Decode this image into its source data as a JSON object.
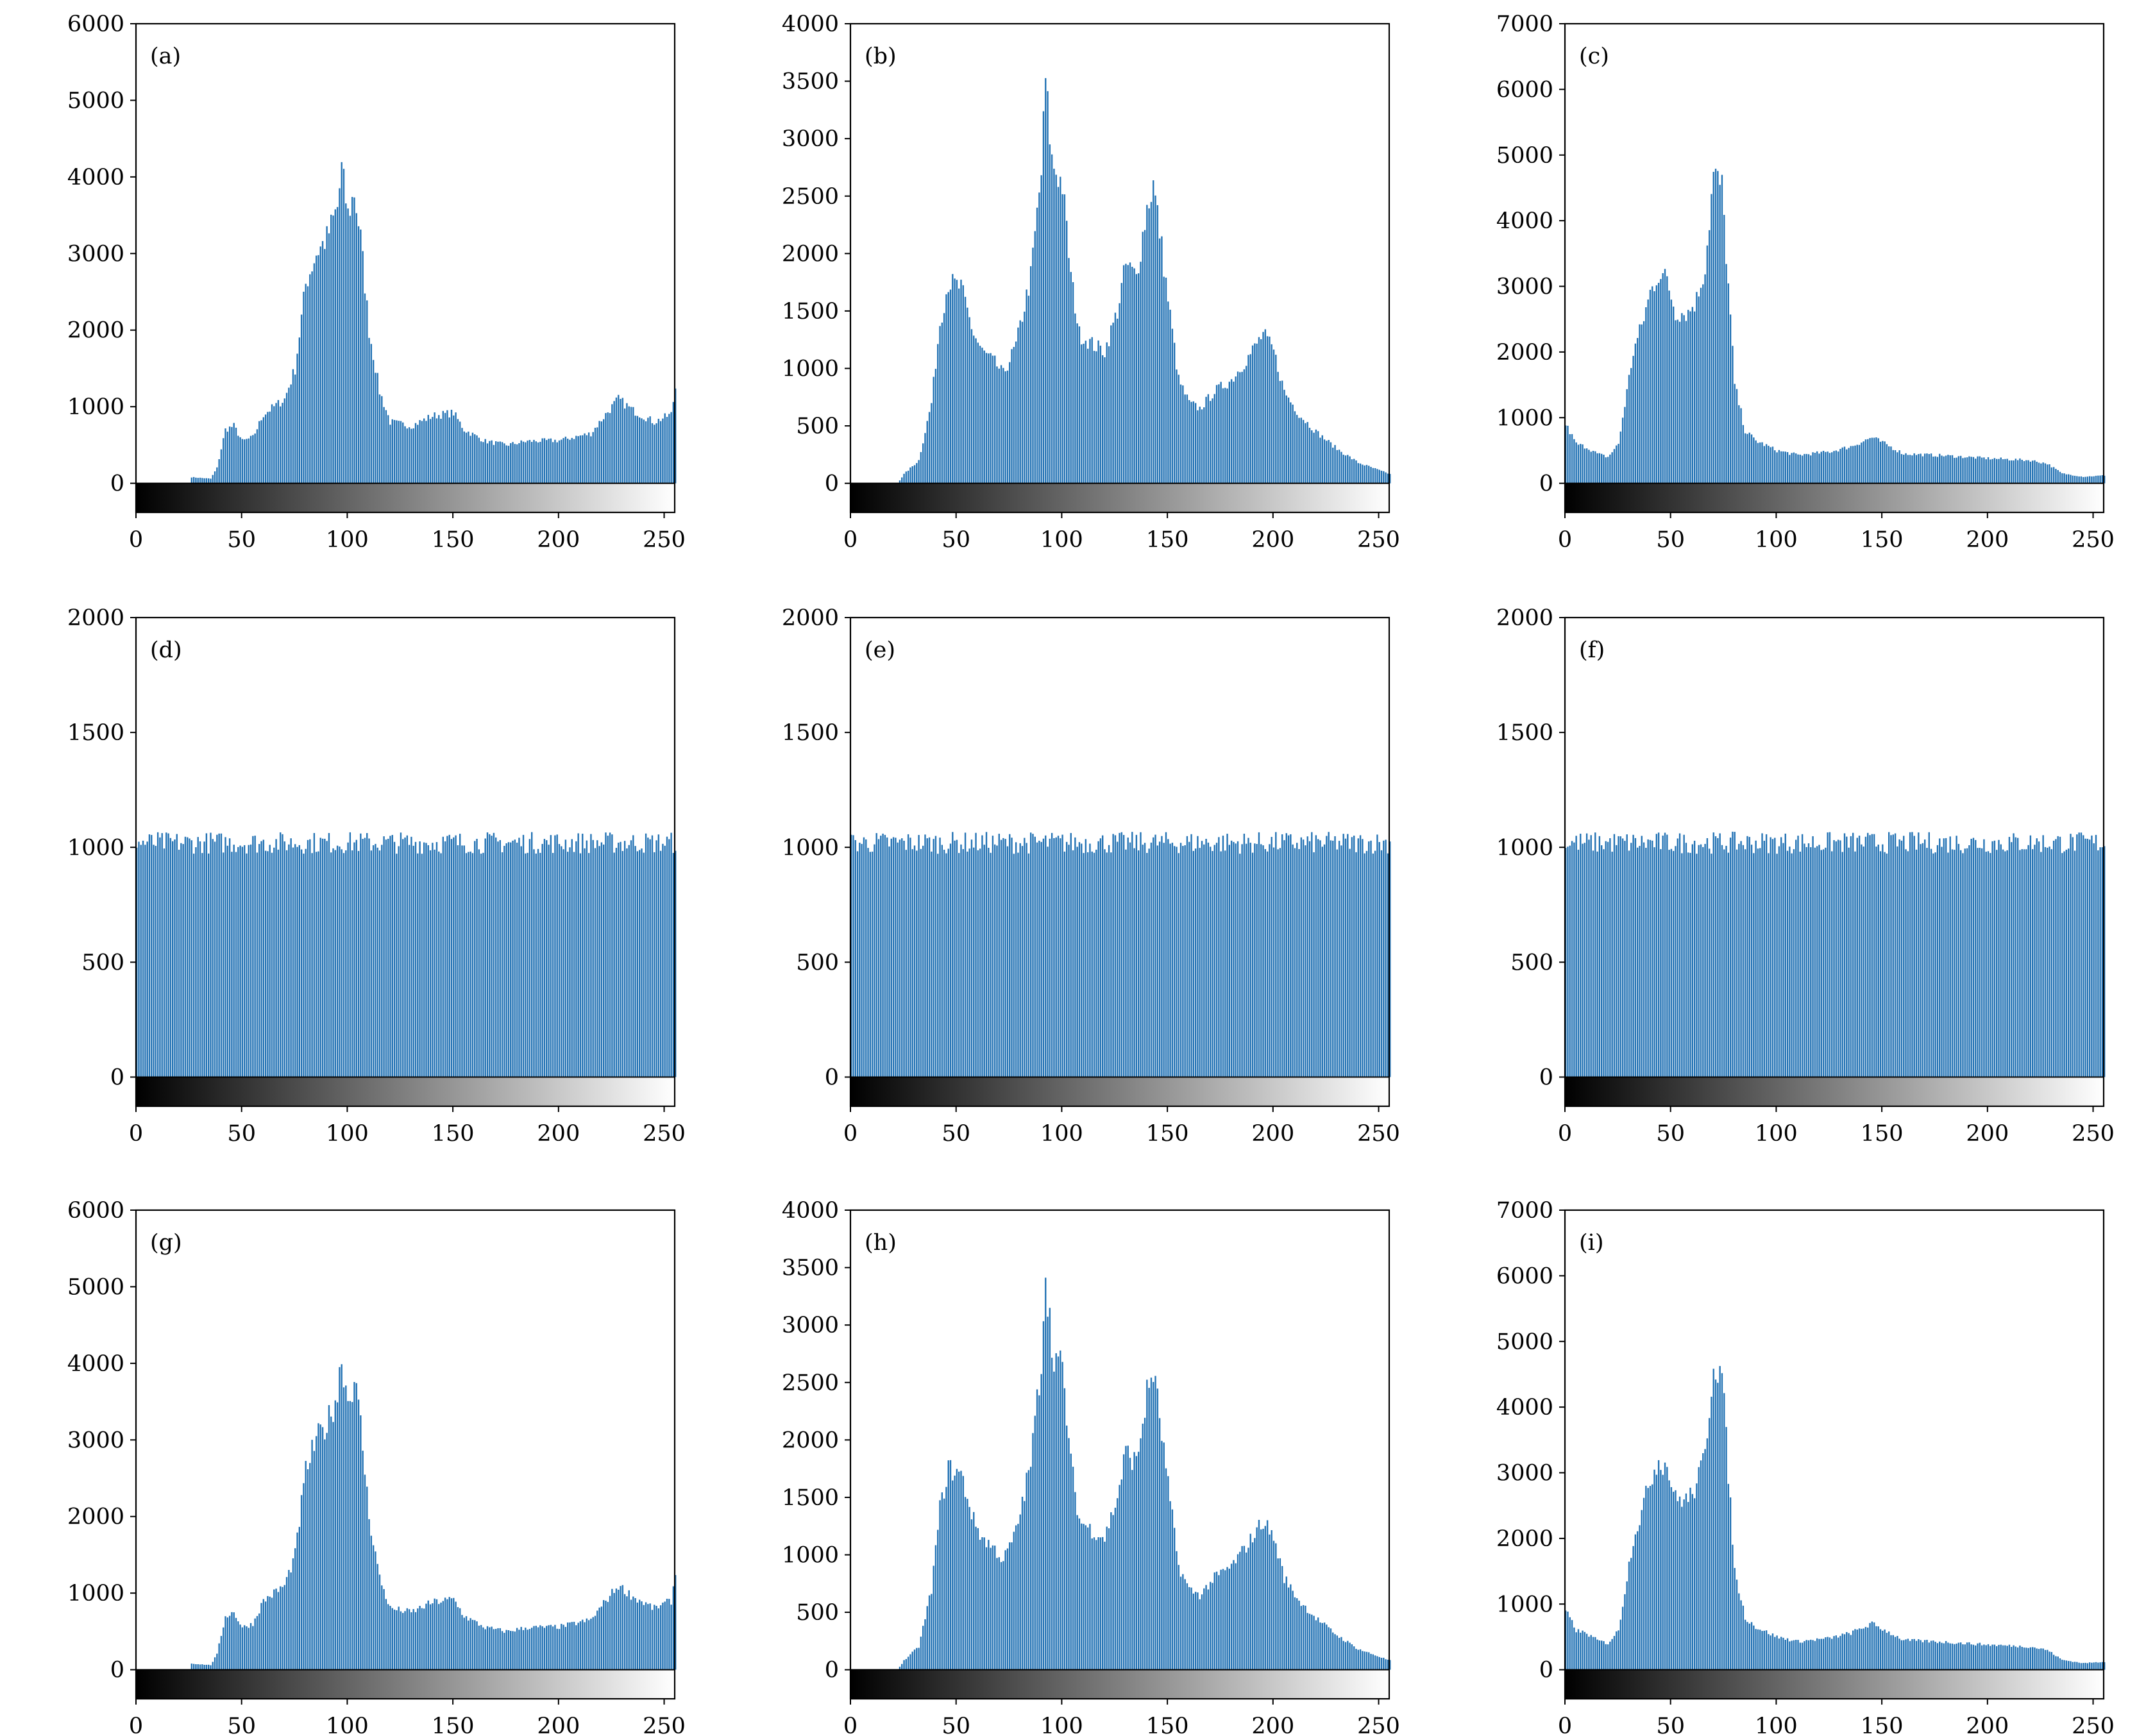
{
  "bar_color": "#2272b4",
  "chart_data": [
    {
      "panel": "(a)",
      "type": "bar",
      "xlim": [
        0,
        255
      ],
      "ylim": [
        -380,
        6000
      ],
      "yticks": [
        0,
        1000,
        2000,
        3000,
        4000,
        5000,
        6000
      ],
      "xticks": [
        0,
        50,
        100,
        150,
        200,
        250
      ],
      "envelope": [
        [
          0,
          0
        ],
        [
          25,
          0
        ],
        [
          26,
          80
        ],
        [
          35,
          60
        ],
        [
          38,
          200
        ],
        [
          42,
          700
        ],
        [
          46,
          750
        ],
        [
          50,
          550
        ],
        [
          55,
          600
        ],
        [
          60,
          900
        ],
        [
          70,
          1100
        ],
        [
          75,
          1500
        ],
        [
          80,
          2600
        ],
        [
          85,
          3000
        ],
        [
          90,
          3200
        ],
        [
          95,
          3600
        ],
        [
          97,
          4100
        ],
        [
          100,
          3500
        ],
        [
          103,
          3800
        ],
        [
          106,
          3200
        ],
        [
          110,
          2000
        ],
        [
          115,
          1200
        ],
        [
          120,
          800
        ],
        [
          130,
          750
        ],
        [
          140,
          880
        ],
        [
          150,
          920
        ],
        [
          155,
          700
        ],
        [
          165,
          550
        ],
        [
          175,
          500
        ],
        [
          185,
          550
        ],
        [
          200,
          560
        ],
        [
          215,
          650
        ],
        [
          222,
          900
        ],
        [
          228,
          1100
        ],
        [
          235,
          950
        ],
        [
          245,
          800
        ],
        [
          253,
          900
        ],
        [
          255,
          1250
        ]
      ]
    },
    {
      "panel": "(b)",
      "type": "bar",
      "xlim": [
        0,
        255
      ],
      "ylim": [
        -253,
        4000
      ],
      "yticks": [
        0,
        500,
        1000,
        1500,
        2000,
        2500,
        3000,
        3500,
        4000
      ],
      "xticks": [
        0,
        50,
        100,
        150,
        200,
        250
      ],
      "envelope": [
        [
          0,
          0
        ],
        [
          22,
          0
        ],
        [
          25,
          80
        ],
        [
          32,
          200
        ],
        [
          38,
          700
        ],
        [
          42,
          1400
        ],
        [
          46,
          1750
        ],
        [
          52,
          1700
        ],
        [
          58,
          1300
        ],
        [
          62,
          1150
        ],
        [
          68,
          1050
        ],
        [
          72,
          950
        ],
        [
          78,
          1200
        ],
        [
          85,
          1800
        ],
        [
          90,
          2700
        ],
        [
          92,
          3500
        ],
        [
          95,
          2800
        ],
        [
          100,
          2600
        ],
        [
          104,
          1800
        ],
        [
          108,
          1300
        ],
        [
          115,
          1200
        ],
        [
          120,
          1150
        ],
        [
          126,
          1500
        ],
        [
          130,
          1900
        ],
        [
          135,
          1800
        ],
        [
          140,
          2400
        ],
        [
          143,
          2600
        ],
        [
          146,
          2200
        ],
        [
          150,
          1600
        ],
        [
          155,
          900
        ],
        [
          160,
          700
        ],
        [
          165,
          650
        ],
        [
          172,
          800
        ],
        [
          180,
          900
        ],
        [
          188,
          1100
        ],
        [
          195,
          1300
        ],
        [
          200,
          1150
        ],
        [
          205,
          800
        ],
        [
          212,
          600
        ],
        [
          220,
          450
        ],
        [
          230,
          300
        ],
        [
          240,
          180
        ],
        [
          255,
          80
        ]
      ]
    },
    {
      "panel": "(c)",
      "type": "bar",
      "xlim": [
        0,
        255
      ],
      "ylim": [
        -443,
        7000
      ],
      "yticks": [
        0,
        1000,
        2000,
        3000,
        4000,
        5000,
        6000,
        7000
      ],
      "xticks": [
        0,
        50,
        100,
        150,
        200,
        250
      ],
      "envelope": [
        [
          0,
          900
        ],
        [
          5,
          600
        ],
        [
          10,
          550
        ],
        [
          15,
          450
        ],
        [
          20,
          400
        ],
        [
          25,
          600
        ],
        [
          28,
          1200
        ],
        [
          32,
          2000
        ],
        [
          36,
          2400
        ],
        [
          40,
          2900
        ],
        [
          44,
          3200
        ],
        [
          48,
          3100
        ],
        [
          52,
          2600
        ],
        [
          58,
          2600
        ],
        [
          62,
          2800
        ],
        [
          66,
          3300
        ],
        [
          70,
          4700
        ],
        [
          74,
          4500
        ],
        [
          77,
          3000
        ],
        [
          80,
          1500
        ],
        [
          85,
          800
        ],
        [
          90,
          650
        ],
        [
          100,
          500
        ],
        [
          110,
          430
        ],
        [
          125,
          480
        ],
        [
          135,
          560
        ],
        [
          145,
          700
        ],
        [
          150,
          620
        ],
        [
          160,
          450
        ],
        [
          180,
          420
        ],
        [
          200,
          380
        ],
        [
          220,
          350
        ],
        [
          228,
          300
        ],
        [
          235,
          150
        ],
        [
          245,
          100
        ],
        [
          255,
          120
        ]
      ]
    },
    {
      "panel": "(d)",
      "type": "bar",
      "xlim": [
        0,
        255
      ],
      "ylim": [
        -127,
        2000
      ],
      "yticks": [
        0,
        500,
        1000,
        1500,
        2000
      ],
      "xticks": [
        0,
        50,
        100,
        150,
        200,
        250
      ],
      "envelope": [
        [
          0,
          1020
        ],
        [
          255,
          1020
        ]
      ],
      "jitter": 60
    },
    {
      "panel": "(e)",
      "type": "bar",
      "xlim": [
        0,
        255
      ],
      "ylim": [
        -127,
        2000
      ],
      "yticks": [
        0,
        500,
        1000,
        1500,
        2000
      ],
      "xticks": [
        0,
        50,
        100,
        150,
        200,
        250
      ],
      "envelope": [
        [
          0,
          1020
        ],
        [
          255,
          1020
        ]
      ],
      "jitter": 60
    },
    {
      "panel": "(f)",
      "type": "bar",
      "xlim": [
        0,
        255
      ],
      "ylim": [
        -127,
        2000
      ],
      "yticks": [
        0,
        500,
        1000,
        1500,
        2000
      ],
      "xticks": [
        0,
        50,
        100,
        150,
        200,
        250
      ],
      "envelope": [
        [
          0,
          1020
        ],
        [
          255,
          1020
        ]
      ],
      "jitter": 60
    },
    {
      "panel": "(g)",
      "type": "bar",
      "xlim": [
        0,
        255
      ],
      "ylim": [
        -380,
        6000
      ],
      "yticks": [
        0,
        1000,
        2000,
        3000,
        4000,
        5000,
        6000
      ],
      "xticks": [
        0,
        50,
        100,
        150,
        200,
        250
      ],
      "envelope": [
        [
          0,
          0
        ],
        [
          25,
          0
        ],
        [
          26,
          80
        ],
        [
          35,
          60
        ],
        [
          38,
          200
        ],
        [
          42,
          700
        ],
        [
          46,
          750
        ],
        [
          50,
          550
        ],
        [
          55,
          600
        ],
        [
          60,
          900
        ],
        [
          70,
          1100
        ],
        [
          75,
          1500
        ],
        [
          80,
          2600
        ],
        [
          85,
          3000
        ],
        [
          90,
          3200
        ],
        [
          95,
          3600
        ],
        [
          97,
          4100
        ],
        [
          100,
          3500
        ],
        [
          103,
          3800
        ],
        [
          106,
          3200
        ],
        [
          110,
          2000
        ],
        [
          115,
          1200
        ],
        [
          120,
          800
        ],
        [
          130,
          750
        ],
        [
          140,
          880
        ],
        [
          150,
          920
        ],
        [
          155,
          700
        ],
        [
          165,
          550
        ],
        [
          175,
          500
        ],
        [
          185,
          550
        ],
        [
          200,
          560
        ],
        [
          215,
          650
        ],
        [
          222,
          900
        ],
        [
          228,
          1100
        ],
        [
          235,
          950
        ],
        [
          245,
          800
        ],
        [
          253,
          900
        ],
        [
          255,
          1250
        ]
      ]
    },
    {
      "panel": "(h)",
      "type": "bar",
      "xlim": [
        0,
        255
      ],
      "ylim": [
        -253,
        4000
      ],
      "yticks": [
        0,
        500,
        1000,
        1500,
        2000,
        2500,
        3000,
        3500,
        4000
      ],
      "xticks": [
        0,
        50,
        100,
        150,
        200,
        250
      ],
      "envelope": [
        [
          0,
          0
        ],
        [
          22,
          0
        ],
        [
          25,
          80
        ],
        [
          32,
          200
        ],
        [
          38,
          700
        ],
        [
          42,
          1400
        ],
        [
          46,
          1750
        ],
        [
          52,
          1700
        ],
        [
          58,
          1300
        ],
        [
          62,
          1150
        ],
        [
          68,
          1050
        ],
        [
          72,
          950
        ],
        [
          78,
          1200
        ],
        [
          85,
          1800
        ],
        [
          90,
          2700
        ],
        [
          92,
          3500
        ],
        [
          95,
          2800
        ],
        [
          100,
          2600
        ],
        [
          104,
          1800
        ],
        [
          108,
          1300
        ],
        [
          115,
          1200
        ],
        [
          120,
          1150
        ],
        [
          126,
          1500
        ],
        [
          130,
          1900
        ],
        [
          135,
          1800
        ],
        [
          140,
          2400
        ],
        [
          143,
          2600
        ],
        [
          146,
          2200
        ],
        [
          150,
          1600
        ],
        [
          155,
          900
        ],
        [
          160,
          700
        ],
        [
          165,
          650
        ],
        [
          172,
          800
        ],
        [
          180,
          900
        ],
        [
          188,
          1100
        ],
        [
          195,
          1300
        ],
        [
          200,
          1150
        ],
        [
          205,
          800
        ],
        [
          212,
          600
        ],
        [
          220,
          450
        ],
        [
          230,
          300
        ],
        [
          240,
          180
        ],
        [
          255,
          80
        ]
      ]
    },
    {
      "panel": "(i)",
      "type": "bar",
      "xlim": [
        0,
        255
      ],
      "ylim": [
        -443,
        7000
      ],
      "yticks": [
        0,
        1000,
        2000,
        3000,
        4000,
        5000,
        6000,
        7000
      ],
      "xticks": [
        0,
        50,
        100,
        150,
        200,
        250
      ],
      "envelope": [
        [
          0,
          900
        ],
        [
          5,
          600
        ],
        [
          10,
          550
        ],
        [
          15,
          450
        ],
        [
          20,
          400
        ],
        [
          25,
          600
        ],
        [
          28,
          1200
        ],
        [
          32,
          2000
        ],
        [
          36,
          2400
        ],
        [
          40,
          2900
        ],
        [
          44,
          3200
        ],
        [
          48,
          3100
        ],
        [
          52,
          2600
        ],
        [
          58,
          2600
        ],
        [
          62,
          2800
        ],
        [
          66,
          3300
        ],
        [
          70,
          4700
        ],
        [
          74,
          4500
        ],
        [
          77,
          3000
        ],
        [
          80,
          1500
        ],
        [
          85,
          800
        ],
        [
          90,
          650
        ],
        [
          100,
          500
        ],
        [
          110,
          430
        ],
        [
          125,
          480
        ],
        [
          135,
          560
        ],
        [
          145,
          700
        ],
        [
          150,
          620
        ],
        [
          160,
          450
        ],
        [
          180,
          420
        ],
        [
          200,
          380
        ],
        [
          220,
          350
        ],
        [
          228,
          300
        ],
        [
          235,
          150
        ],
        [
          245,
          100
        ],
        [
          255,
          120
        ]
      ]
    }
  ]
}
